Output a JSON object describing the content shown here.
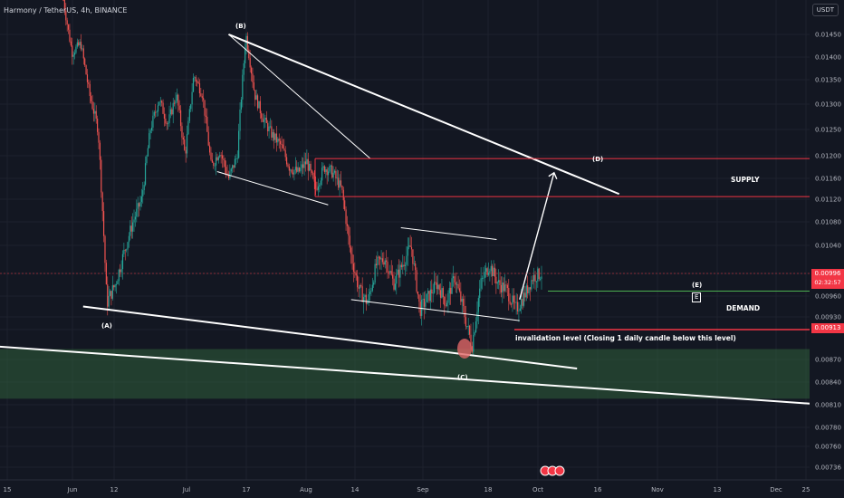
{
  "header": {
    "title": "Harmony / TetherUS, 4h, BINANCE"
  },
  "quote_currency": "USDT",
  "colors": {
    "background": "#131722",
    "up_candle": "#26a69a",
    "down_candle": "#ef5350",
    "trendline": "#ffffff",
    "zone_line": "#f23645",
    "demand_line": "#4caf50",
    "support_zone": "#2f5f3a",
    "price_tag": "#f23645"
  },
  "current_price": {
    "value": "0.00996",
    "countdown": "02:32:57"
  },
  "invalidation_price": {
    "value": "0.00913"
  },
  "annotations": {
    "supply": "SUPPLY",
    "demand": "DEMAND",
    "invalidation": "invalidation level (Closing 1 daily candle below this level)"
  },
  "wave_labels": {
    "A": "(A)",
    "B": "(B)",
    "C": "(C)",
    "D": "(D)",
    "E": "(E)",
    "E_box": "E"
  },
  "chart_data": {
    "type": "candlestick",
    "title": "Harmony / TetherUS, 4h, BINANCE",
    "x_ticks": [
      "15",
      "Jun",
      "12",
      "Jul",
      "17",
      "Aug",
      "14",
      "Sep",
      "18",
      "Oct",
      "16",
      "Nov",
      "13",
      "Dec",
      "25"
    ],
    "y_ticks": [
      "0.01450",
      "0.01400",
      "0.01350",
      "0.01300",
      "0.01250",
      "0.01200",
      "0.01160",
      "0.01120",
      "0.01080",
      "0.01040",
      "0.00996",
      "0.00960",
      "0.00930",
      "0.00913",
      "0.00870",
      "0.00840",
      "0.00810",
      "0.00780",
      "0.00760",
      "0.00736"
    ],
    "price_path": [
      0.0152,
      0.0141,
      0.0143,
      0.0132,
      0.0125,
      0.0095,
      0.0098,
      0.0103,
      0.0108,
      0.0112,
      0.0125,
      0.0131,
      0.0126,
      0.0132,
      0.012,
      0.0136,
      0.0132,
      0.0118,
      0.0121,
      0.0116,
      0.012,
      0.0145,
      0.0132,
      0.0127,
      0.0124,
      0.0122,
      0.0118,
      0.0117,
      0.0119,
      0.0114,
      0.0118,
      0.0117,
      0.0114,
      0.0103,
      0.0097,
      0.0095,
      0.0101,
      0.0102,
      0.0098,
      0.0101,
      0.0104,
      0.0094,
      0.0096,
      0.0098,
      0.0095,
      0.0099,
      0.0094,
      0.0089,
      0.0098,
      0.0101,
      0.0098,
      0.0097,
      0.0094,
      0.0096,
      0.0099,
      0.00996
    ],
    "levels": {
      "supply": [
        0.01195,
        0.01125
      ],
      "demand": 0.00968,
      "invalidation": 0.00913,
      "support_zone": [
        0.00885,
        0.00818
      ]
    },
    "trendlines": [
      {
        "from": [
          "Jul 13",
          0.0145
        ],
        "to": [
          "Oct 23",
          0.0113
        ]
      },
      {
        "from": [
          "Jun 5",
          0.00945
        ],
        "to": [
          "Oct 12",
          0.00858
        ]
      },
      {
        "from": [
          "May 10",
          0.0089
        ],
        "to": [
          "Dec 30",
          0.00805
        ]
      },
      {
        "from": [
          "Jul 13",
          0.0145
        ],
        "to": [
          "Aug 19",
          0.01195
        ]
      },
      {
        "from": [
          "Jul 10",
          0.01172
        ],
        "to": [
          "Aug 8",
          0.0111
        ]
      },
      {
        "from": [
          "Aug 27",
          0.0107
        ],
        "to": [
          "Sep 21",
          0.0105
        ]
      },
      {
        "from": [
          "Aug 14",
          0.00955
        ],
        "to": [
          "Sep 27",
          0.00925
        ]
      },
      {
        "from": [
          "Sep 27",
          0.00955
        ],
        "to": [
          "Oct 6",
          0.0117
        ]
      }
    ],
    "wave_points": {
      "(A)": "Jun 7",
      "(B)": "Jul 13",
      "(C)": "Sep 11",
      "(D)": "Oct 10",
      "(E)": "Oct 5"
    }
  }
}
